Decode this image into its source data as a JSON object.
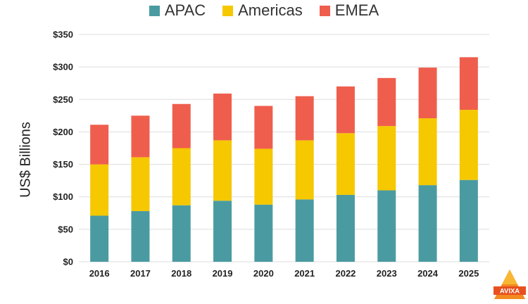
{
  "chart_data": {
    "type": "bar",
    "stacked": true,
    "categories": [
      "2016",
      "2017",
      "2018",
      "2019",
      "2020",
      "2021",
      "2022",
      "2023",
      "2024",
      "2025"
    ],
    "series": [
      {
        "name": "APAC",
        "color": "#4a9ba1",
        "values": [
          71,
          78,
          87,
          94,
          88,
          96,
          103,
          110,
          118,
          126
        ]
      },
      {
        "name": "Americas",
        "color": "#f5c800",
        "values": [
          79,
          83,
          88,
          93,
          86,
          91,
          95,
          99,
          103,
          108
        ]
      },
      {
        "name": "EMEA",
        "color": "#ef5e4d",
        "values": [
          61,
          64,
          68,
          72,
          66,
          68,
          72,
          74,
          78,
          81
        ]
      }
    ],
    "ylabel": "US$ Billions",
    "ylim": [
      0,
      350
    ],
    "yticks": [
      0,
      50,
      100,
      150,
      200,
      250,
      300,
      350
    ],
    "ytick_labels": [
      "$0",
      "$50",
      "$100",
      "$150",
      "$200",
      "$250",
      "$300",
      "$350"
    ],
    "legend_position": "top-center",
    "grid": true
  },
  "logo": {
    "text": "AVIXA"
  }
}
